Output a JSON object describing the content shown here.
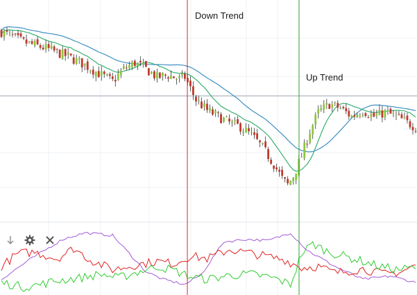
{
  "chart_data": [
    {
      "type": "candlestick",
      "panel": "price",
      "title": "",
      "xlabel": "",
      "ylabel": "",
      "grid": true,
      "ylim": [
        0,
        100
      ],
      "n": 150,
      "price_path": [
        [
          0,
          88
        ],
        [
          8,
          83
        ],
        [
          16,
          80
        ],
        [
          24,
          76
        ],
        [
          30,
          72
        ],
        [
          36,
          67
        ],
        [
          40,
          64
        ],
        [
          44,
          70
        ],
        [
          48,
          73
        ],
        [
          52,
          70
        ],
        [
          56,
          66
        ],
        [
          60,
          67
        ],
        [
          64,
          65
        ],
        [
          66,
          66
        ],
        [
          70,
          55
        ],
        [
          74,
          50
        ],
        [
          78,
          47
        ],
        [
          82,
          44
        ],
        [
          86,
          42
        ],
        [
          90,
          38
        ],
        [
          94,
          32
        ],
        [
          98,
          24
        ],
        [
          101,
          17
        ],
        [
          103,
          14
        ],
        [
          105,
          18
        ],
        [
          108,
          28
        ],
        [
          111,
          40
        ],
        [
          114,
          49
        ],
        [
          118,
          53
        ],
        [
          122,
          51
        ],
        [
          126,
          47
        ],
        [
          130,
          50
        ],
        [
          134,
          47
        ],
        [
          138,
          49
        ],
        [
          142,
          47
        ],
        [
          146,
          44
        ],
        [
          149,
          42
        ]
      ],
      "moving_averages": [
        {
          "name": "",
          "period": 10,
          "color": "#35b06e"
        },
        {
          "name": "",
          "period": 22,
          "color": "#3f8fc4"
        }
      ],
      "candle_colors": {
        "up": "#8cc63f",
        "down": "#c0392b"
      },
      "horizontal_line": {
        "y": 57,
        "color": "#9aa5b1"
      },
      "annotations": [
        {
          "text": "Down Trend",
          "at_index": 67,
          "line_color": "#d62728"
        },
        {
          "text": "Up Trend",
          "at_index": 107,
          "line_color": "#2ca02c"
        }
      ]
    },
    {
      "type": "line",
      "panel": "indicator",
      "title": "",
      "ylim": [
        0,
        100
      ],
      "series": [
        {
          "name": "",
          "color": "#a35ad6",
          "values_path": [
            [
              0,
              20
            ],
            [
              10,
              50
            ],
            [
              22,
              82
            ],
            [
              30,
              92
            ],
            [
              40,
              88
            ],
            [
              46,
              60
            ],
            [
              52,
              32
            ],
            [
              58,
              20
            ],
            [
              66,
              12
            ],
            [
              72,
              28
            ],
            [
              80,
              78
            ],
            [
              88,
              82
            ],
            [
              96,
              80
            ],
            [
              104,
              92
            ],
            [
              110,
              65
            ],
            [
              120,
              40
            ],
            [
              130,
              20
            ],
            [
              140,
              25
            ],
            [
              149,
              15
            ]
          ]
        },
        {
          "name": "",
          "color": "#e02020",
          "values_path": [
            [
              0,
              40
            ],
            [
              6,
              60
            ],
            [
              12,
              62
            ],
            [
              20,
              52
            ],
            [
              26,
              68
            ],
            [
              32,
              50
            ],
            [
              40,
              35
            ],
            [
              48,
              42
            ],
            [
              56,
              48
            ],
            [
              62,
              44
            ],
            [
              68,
              56
            ],
            [
              74,
              52
            ],
            [
              82,
              66
            ],
            [
              90,
              60
            ],
            [
              96,
              55
            ],
            [
              102,
              50
            ],
            [
              108,
              38
            ],
            [
              114,
              40
            ],
            [
              120,
              30
            ],
            [
              130,
              36
            ],
            [
              138,
              28
            ],
            [
              144,
              32
            ],
            [
              149,
              42
            ]
          ]
        },
        {
          "name": "",
          "color": "#2ecc2e",
          "values_path": [
            [
              0,
              15
            ],
            [
              8,
              8
            ],
            [
              14,
              12
            ],
            [
              20,
              18
            ],
            [
              28,
              22
            ],
            [
              36,
              28
            ],
            [
              42,
              22
            ],
            [
              48,
              30
            ],
            [
              56,
              40
            ],
            [
              62,
              34
            ],
            [
              68,
              24
            ],
            [
              74,
              20
            ],
            [
              82,
              26
            ],
            [
              90,
              28
            ],
            [
              98,
              22
            ],
            [
              104,
              12
            ],
            [
              108,
              60
            ],
            [
              112,
              75
            ],
            [
              118,
              62
            ],
            [
              124,
              55
            ],
            [
              130,
              48
            ],
            [
              136,
              40
            ],
            [
              142,
              35
            ],
            [
              149,
              38
            ]
          ]
        }
      ]
    }
  ],
  "toolbar": {
    "icons": [
      "arrow-down-icon",
      "gear-icon",
      "close-icon"
    ]
  }
}
